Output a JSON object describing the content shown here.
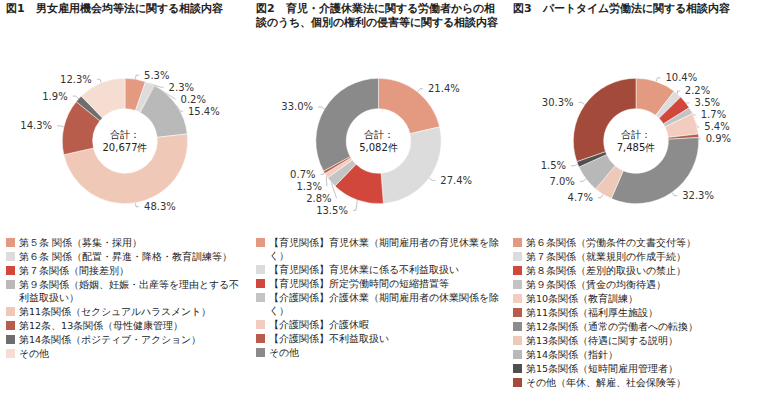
{
  "chart_data": [
    {
      "type": "pie",
      "title": "図1　男女雇用機会均等法に関する相談内容",
      "center_caption": "合計：",
      "total": {
        "value": 20677,
        "label": "20,677件"
      },
      "categories": [
        "第５条 関係（募集・採用）",
        "第６条 関係（配置・昇進・降格・教育訓練等）",
        "第７条関係（間接差別）",
        "第９条関係（婚姻、妊娠・出産等を理由とする不利益取扱い）",
        "第11条関係（セクシュアルハラスメント）",
        "第12条、13条関係（母性健康管理）",
        "第14条関係（ポジティブ・アクション）",
        "その他"
      ],
      "values": [
        5.3,
        2.3,
        0.2,
        15.4,
        48.3,
        14.3,
        1.9,
        12.3
      ],
      "value_labels": [
        "5.3%",
        "2.3%",
        "0.2%",
        "15.4%",
        "48.3%",
        "14.3%",
        "1.9%",
        "12.3%"
      ],
      "colors": [
        "#e39a80",
        "#dcdcdc",
        "#d2473b",
        "#b9b9b9",
        "#f0c8b8",
        "#b85c4c",
        "#6e6e6e",
        "#f5ddd2"
      ],
      "data_labels": true,
      "legend": "bottom"
    },
    {
      "type": "pie",
      "title": "図2　育児・介護休業法に関する労働者からの相談のうち、個別の権利の侵害等に関する相談内容",
      "center_caption": "合計：",
      "total": {
        "value": 5082,
        "label": "5,082件"
      },
      "categories": [
        "【育児関係】育児休業（期間雇用者の育児休業を除く）",
        "【育児関係】育児休業に係る不利益取扱い",
        "【育児関係】所定労働時間の短縮措置等",
        "【介護関係】介護休業（期間雇用者の休業関係を除く）",
        "【介護関係】介護休暇",
        "【介護関係】不利益取扱い",
        "その他"
      ],
      "values": [
        21.4,
        27.4,
        13.5,
        2.8,
        1.3,
        0.7,
        33.0
      ],
      "value_labels": [
        "21.4%",
        "27.4%",
        "13.5%",
        "2.8%",
        "1.3%",
        "0.7%",
        "33.0%"
      ],
      "colors": [
        "#e39a80",
        "#dcdcdc",
        "#d2473b",
        "#c4c4c4",
        "#f2cdbf",
        "#b85c4c",
        "#8a8a8a"
      ],
      "data_labels": true,
      "legend": "bottom"
    },
    {
      "type": "pie",
      "title": "図3　パートタイム労働法に関する相談内容",
      "center_caption": "合計：",
      "total": {
        "value": 7485,
        "label": "7,485件"
      },
      "categories": [
        "第６条関係（労働条件の文書交付等）",
        "第７条関係（就業規則の作成手続）",
        "第８条関係（差別的取扱いの禁止）",
        "第９条関係（賃金の均衡待遇）",
        "第10条関係（教育訓練）",
        "第11条関係（福利厚生施設）",
        "第12条関係（通常の労働者への転換）",
        "第13条関係（待遇に関する説明）",
        "第14条関係（指針）",
        "第15条関係（短時間雇用管理者）",
        "その他（年休、解雇、社会保険等）"
      ],
      "values": [
        10.4,
        2.2,
        3.5,
        1.7,
        5.4,
        0.9,
        32.3,
        4.7,
        7.0,
        1.5,
        30.3
      ],
      "value_labels": [
        "10.4%",
        "2.2%",
        "3.5%",
        "1.7%",
        "5.4%",
        "0.9%",
        "32.3%",
        "4.7%",
        "7.0%",
        "1.5%",
        "30.3%"
      ],
      "colors": [
        "#e39a80",
        "#dcdcdc",
        "#d2473b",
        "#c4c4c4",
        "#f2cdbf",
        "#b85c4c",
        "#8c8c8c",
        "#ecc9b8",
        "#b8b8b8",
        "#505050",
        "#a34a3a"
      ],
      "data_labels": true,
      "legend": "bottom"
    }
  ]
}
